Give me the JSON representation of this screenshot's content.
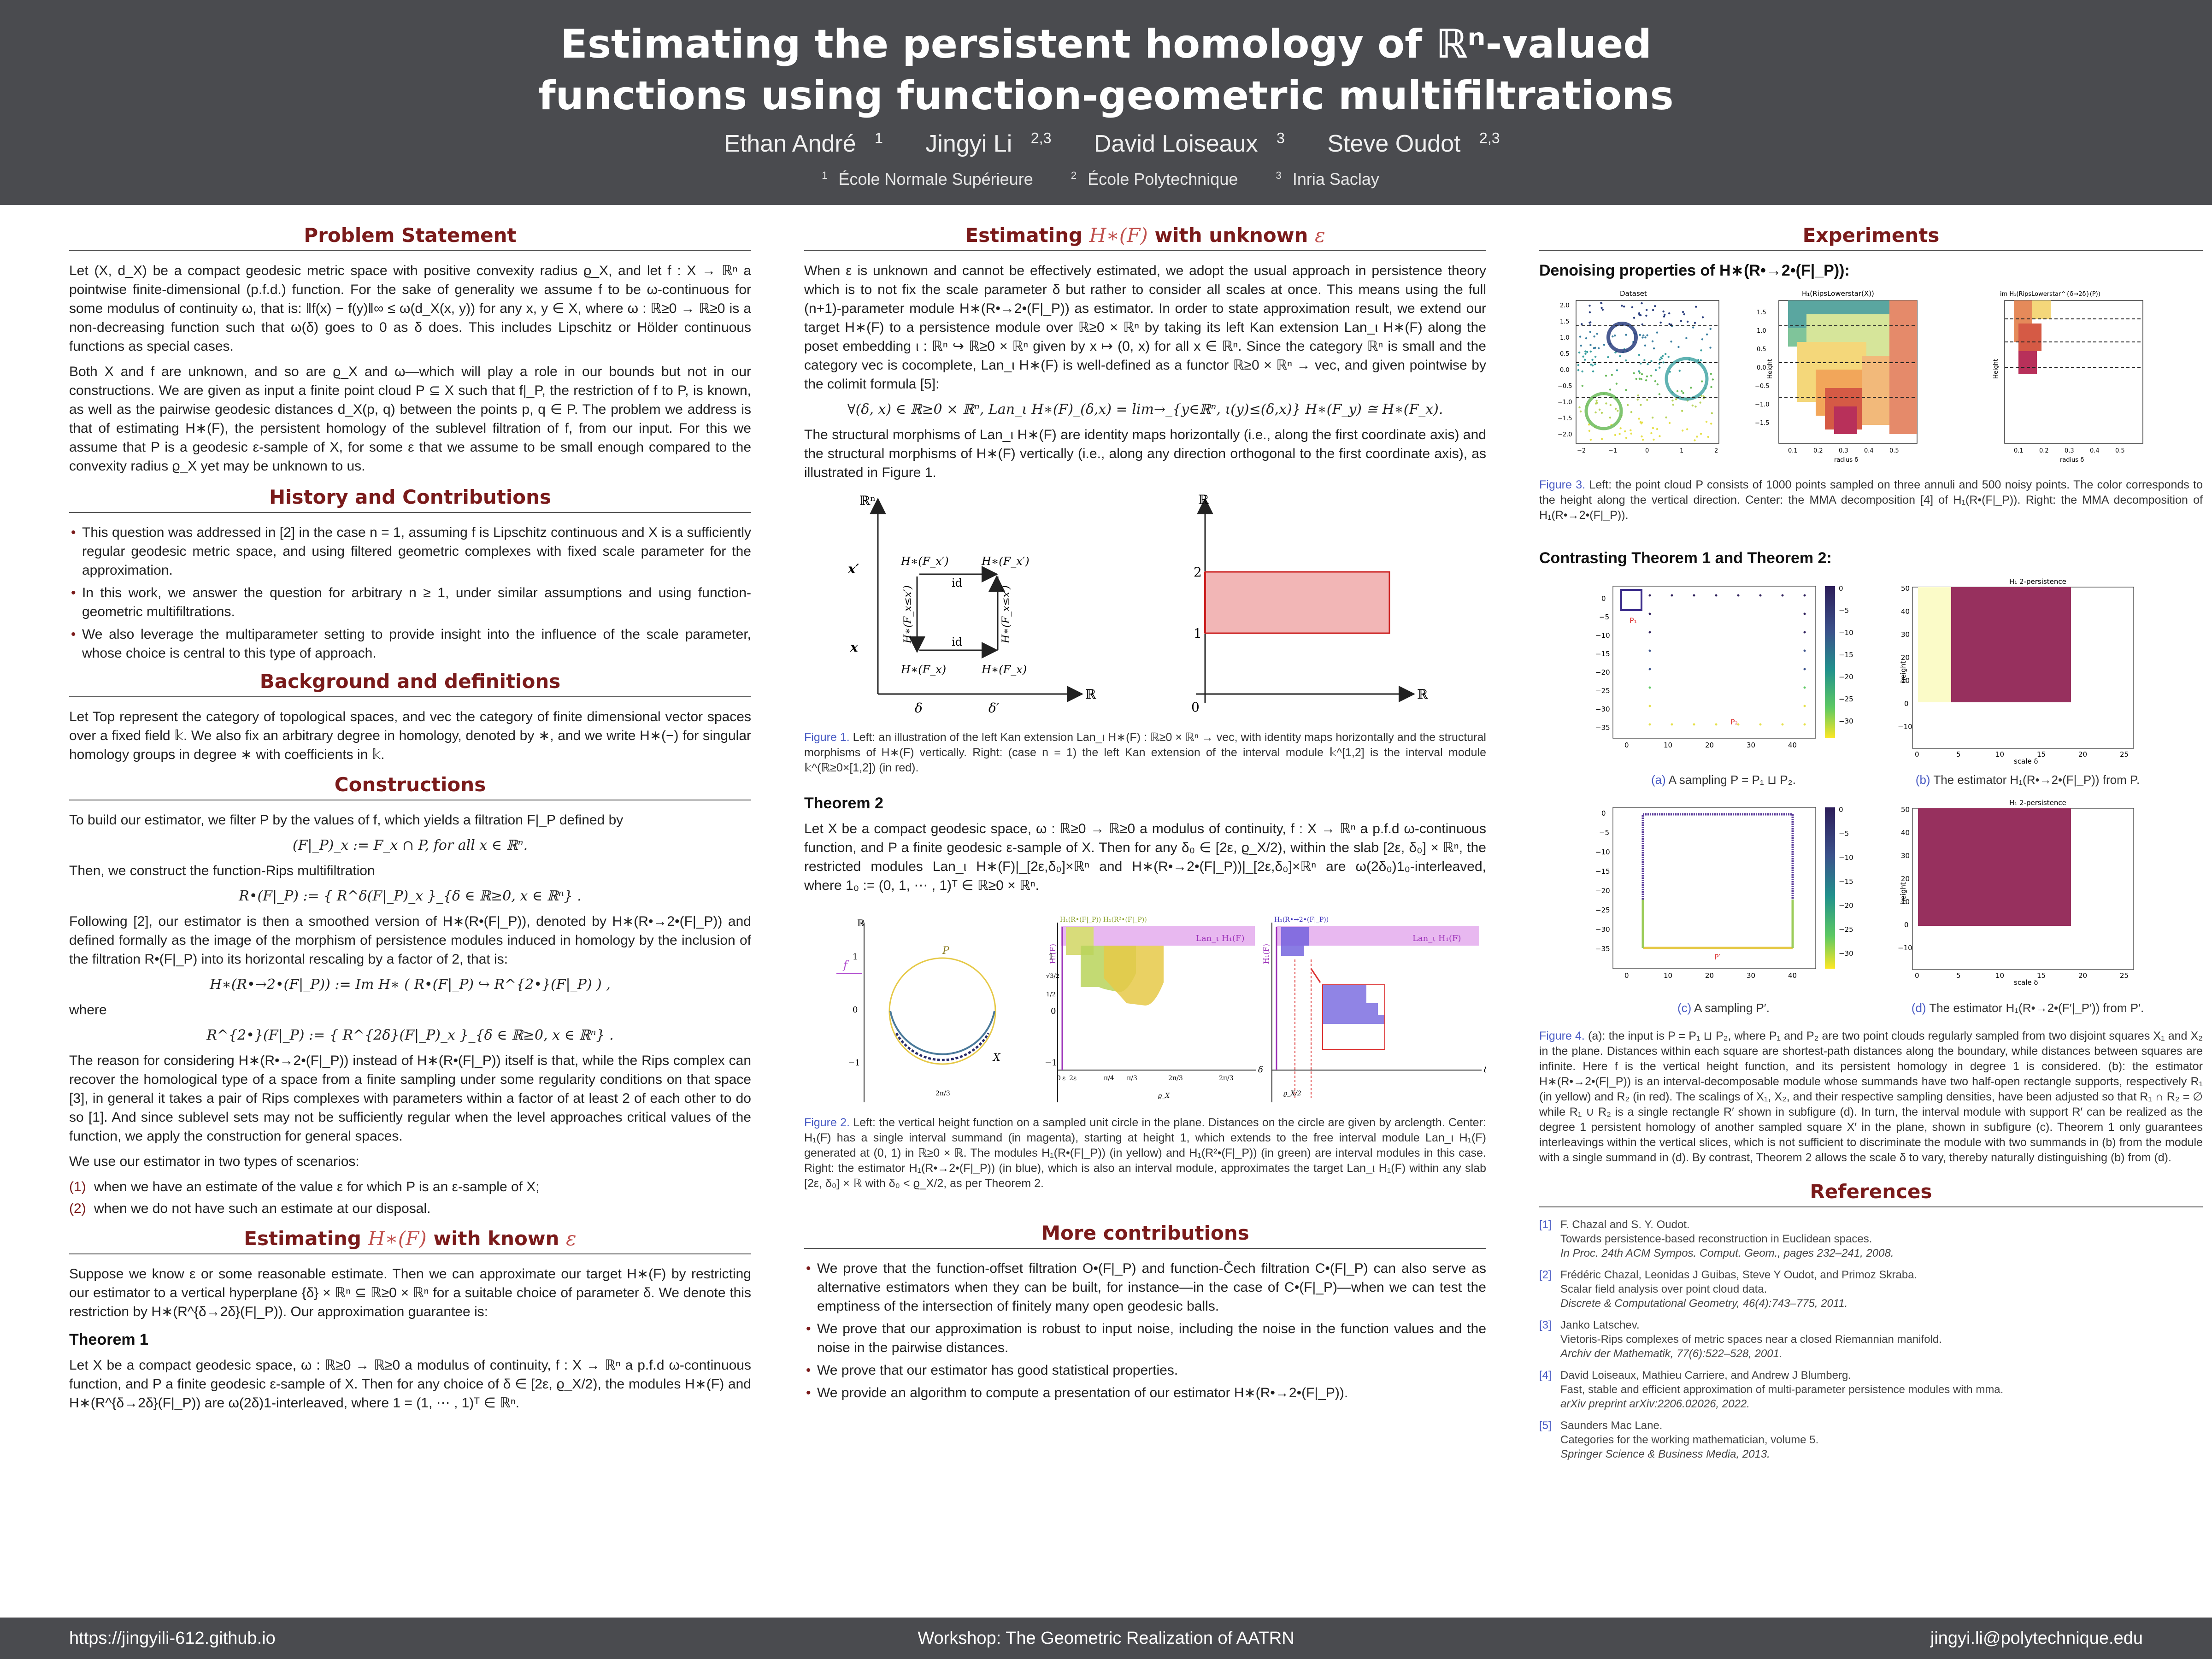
{
  "header": {
    "title_line1": "Estimating the persistent homology of ℝⁿ-valued",
    "title_line2": "functions using function-geometric multifiltrations",
    "authors": [
      {
        "name": "Ethan André",
        "sup": "1"
      },
      {
        "name": "Jingyi Li",
        "sup": "2,3"
      },
      {
        "name": "David Loiseaux",
        "sup": "3"
      },
      {
        "name": "Steve Oudot",
        "sup": "2,3"
      }
    ],
    "affiliations": [
      {
        "sup": "1",
        "name": "École Normale Supérieure"
      },
      {
        "sup": "2",
        "name": "École Polytechnique"
      },
      {
        "sup": "3",
        "name": "Inria Saclay"
      }
    ]
  },
  "col1": {
    "problem_title": "Problem Statement",
    "problem_p1": "Let (X, d_X) be a compact geodesic metric space with positive convexity radius ϱ_X, and let f : X → ℝⁿ a pointwise finite-dimensional (p.f.d.) function. For the sake of generality we assume f to be ω-continuous for some modulus of continuity ω, that is: ‖f(x) − f(y)‖∞ ≤ ω(d_X(x, y)) for any x, y ∈ X, where ω : ℝ≥0 → ℝ≥0 is a non-decreasing function such that ω(δ) goes to 0 as δ does. This includes Lipschitz or Hölder continuous functions as special cases.",
    "problem_p2": "Both X and f are unknown, and so are ϱ_X and ω—which will play a role in our bounds but not in our constructions. We are given as input a finite point cloud P ⊆ X such that f|_P, the restriction of f to P, is known, as well as the pairwise geodesic distances d_X(p, q) between the points p, q ∈ P. The problem we address is that of estimating H∗(F), the persistent homology of the sublevel filtration of f, from our input. For this we assume that P is a geodesic ε-sample of X, for some ε that we assume to be small enough compared to the convexity radius ϱ_X yet may be unknown to us.",
    "history_title": "History and Contributions",
    "history_items": [
      "This question was addressed in [2] in the case n = 1, assuming f is Lipschitz continuous and X is a sufficiently regular geodesic metric space, and using filtered geometric complexes with fixed scale parameter for the approximation.",
      "In this work, we answer the question for arbitrary n ≥ 1, under similar assumptions and using function-geometric multifiltrations.",
      "We also leverage the multiparameter setting to provide insight into the influence of the scale parameter, whose choice is central to this type of approach."
    ],
    "background_title": "Background and definitions",
    "background_p": "Let Top represent the category of topological spaces, and vec the category of finite dimensional vector spaces over a fixed field 𝕜. We also fix an arbitrary degree in homology, denoted by ∗, and we write H∗(−) for singular homology groups in degree ∗ with coefficients in 𝕜.",
    "constructions_title": "Constructions",
    "constructions_p1": "To build our estimator, we filter P by the values of f, which yields a filtration F|_P defined by",
    "constructions_eq1": "(F|_P)_x := F_x ∩ P, for all x ∈ ℝⁿ.",
    "constructions_p2": "Then, we construct the function-Rips multifiltration",
    "constructions_eq2": "R•(F|_P) := { R^δ(F|_P)_x }_{δ ∈ ℝ≥0, x ∈ ℝⁿ} .",
    "constructions_p3": "Following [2], our estimator is then a smoothed version of H∗(R•(F|_P)), denoted by H∗(R•→2•(F|_P)) and defined formally as the image of the morphism of persistence modules induced in homology by the inclusion of the filtration R•(F|_P) into its horizontal rescaling by a factor of 2, that is:",
    "constructions_eq3": "H∗(R•→2•(F|_P)) := Im H∗ ( R•(F|_P) ↪ R^{2•}(F|_P) ) ,",
    "constructions_where": "where",
    "constructions_eq4": "R^{2•}(F|_P) := { R^{2δ}(F|_P)_x }_{δ ∈ ℝ≥0, x ∈ ℝⁿ} .",
    "constructions_p4": "The reason for considering H∗(R•→2•(F|_P)) instead of H∗(R•(F|_P)) itself is that, while the Rips complex can recover the homological type of a space from a finite sampling under some regularity conditions on that space [3], in general it takes a pair of Rips complexes with parameters within a factor of at least 2 of each other to do so [1]. And since sublevel sets may not be sufficiently regular when the level approaches critical values of the function, we apply the construction for general spaces.",
    "constructions_p5": "We use our estimator in two types of scenarios:",
    "scenarios": [
      {
        "num": "(1)",
        "text": "when we have an estimate of the value ε for which P is an ε-sample of X;"
      },
      {
        "num": "(2)",
        "text": "when we do not have such an estimate at our disposal."
      }
    ],
    "known_title_a": "Estimating ",
    "known_title_m": "H∗(F)",
    "known_title_b": " with known ",
    "known_title_e": "ε",
    "known_p": "Suppose we know ε or some reasonable estimate. Then we can approximate our target H∗(F) by restricting our estimator to a vertical hyperplane {δ} × ℝⁿ ⊆ ℝ≥0 × ℝⁿ for a suitable choice of parameter δ. We denote this restriction by H∗(R^{δ→2δ}(F|_P)). Our approximation guarantee is:",
    "thm1_title": "Theorem 1",
    "thm1_text": "Let X be a compact geodesic space, ω : ℝ≥0 → ℝ≥0 a modulus of continuity, f : X → ℝⁿ a p.f.d ω-continuous function, and P a finite geodesic ε-sample of X. Then for any choice of δ ∈ [2ε, ϱ_X/2), the modules H∗(F) and H∗(R^{δ→2δ}(F|_P)) are ω(2δ)1-interleaved, where 1 = (1, ⋯ , 1)ᵀ ∈ ℝⁿ."
  },
  "col2": {
    "unknown_title_a": "Estimating ",
    "unknown_title_m": "H∗(F)",
    "unknown_title_b": " with unknown ",
    "unknown_title_e": "ε",
    "unknown_p1": "When ε is unknown and cannot be effectively estimated, we adopt the usual approach in persistence theory which is to not fix the scale parameter δ but rather to consider all scales at once. This means using the full (n+1)-parameter module H∗(R•→2•(F|_P)) as estimator. In order to state approximation result, we extend our target H∗(F) to a persistence module over ℝ≥0 × ℝⁿ by taking its left Kan extension Lan_ι H∗(F) along the poset embedding ι : ℝⁿ ↪ ℝ≥0 × ℝⁿ given by x ↦ (0, x) for all x ∈ ℝⁿ. Since the category ℝⁿ is small and the category vec is cocomplete, Lan_ι H∗(F) is well-defined as a functor ℝ≥0 × ℝⁿ → vec, and given pointwise by the colimit formula [5]:",
    "unknown_eq": "∀(δ, x) ∈ ℝ≥0 × ℝⁿ,   Lan_ι H∗(F)_(δ,x) =  lim→_{y∈ℝⁿ, ι(y)≤(δ,x)}  H∗(F_y) ≅ H∗(F_x).",
    "unknown_p2": "The structural morphisms of Lan_ι H∗(F) are identity maps horizontally (i.e., along the first coordinate axis) and the structural morphisms of H∗(F) vertically (i.e., along any direction orthogonal to the first coordinate axis), as illustrated in Figure 1.",
    "fig1_left": {
      "y_axis": "ℝⁿ",
      "x_axis": "ℝ",
      "y_ticks": [
        "x′",
        "x"
      ],
      "x_ticks": [
        "δ",
        "δ′"
      ],
      "top_left": "H∗(F_x′)",
      "top_right": "H∗(F_x′)",
      "bottom_left": "H∗(F_x)",
      "bottom_right": "H∗(F_x)",
      "left_vertical": "H∗(F_x≤x′)",
      "right_vertical": "H∗(F_x≤x′)",
      "id_label": "id"
    },
    "fig1_right": {
      "y_axis": "ℝ",
      "x_axis": "ℝ",
      "y_ticks": [
        "2",
        "1"
      ],
      "origin": "0",
      "fill_color": "#f2b6b6",
      "stroke_color": "#cc2222"
    },
    "fig1_caption_label": "Figure 1.",
    "fig1_caption": " Left: an illustration of the left Kan extension Lan_ι H∗(F) : ℝ≥0 × ℝⁿ → vec, with identity maps horizontally and the structural morphisms of H∗(F) vertically. Right: (case n = 1) the left Kan extension of the interval module 𝕜^[1,2] is the interval module 𝕜^(ℝ≥0×[1,2]) (in red).",
    "thm2_title": "Theorem 2",
    "thm2_text": "Let X be a compact geodesic space, ω : ℝ≥0 → ℝ≥0 a modulus of continuity, f : X → ℝⁿ a p.f.d ω-continuous function, and P a finite geodesic ε-sample of X. Then for any δ₀ ∈ [2ε, ϱ_X/2), within the slab [2ε, δ₀] × ℝⁿ, the restricted modules Lan_ι H∗(F)|_[2ε,δ₀]×ℝⁿ and H∗(R•→2•(F|_P))|_[2ε,δ₀]×ℝⁿ are ω(2δ₀)1₀-interleaved, where 1₀ := (0, 1, ⋯ , 1)ᵀ ∈ ℝ≥0 × ℝⁿ.",
    "fig2": {
      "circle_labels": {
        "y_axis": "ℝ",
        "f_label": "f",
        "P_label": "P",
        "X_label": "X",
        "ticks": [
          "1",
          "0",
          "−1"
        ],
        "bottom": "2π/3"
      },
      "middle_legend": "H₁(R•(F|_P))  H₁(R²•(F|_P))",
      "middle_lan": "Lan_ι H₁(F)",
      "middle_ylabel": "H₁(F)",
      "middle_xticks": [
        "0",
        "ε",
        "2ε",
        "π/4",
        "π/3",
        "2π/3",
        "2π/3"
      ],
      "middle_yticks": [
        "1",
        "√3/2",
        "1/2",
        "0",
        "−1"
      ],
      "right_legend": "H₁(R•→2•(F|_P))",
      "right_lan": "Lan_ι H₁(F)",
      "right_ylabel": "H₁(F)",
      "axis_delta": "δ",
      "rho_label": "ϱ_X",
      "rho_half": "ϱ_X/2",
      "colors": {
        "yellow": "#e6c948",
        "green": "#b8d35a",
        "magenta": "#d66be6",
        "blue": "#6b5bdc",
        "red": "#dd3333"
      }
    },
    "fig2_caption_label": "Figure 2.",
    "fig2_caption": " Left: the vertical height function on a sampled unit circle in the plane. Distances on the circle are given by arclength. Center: H₁(F) has a single interval summand (in magenta), starting at height 1, which extends to the free interval module Lan_ι H₁(F) generated at (0, 1) in ℝ≥0 × ℝ. The modules H₁(R•(F|_P)) (in yellow) and H₁(R²•(F|_P)) (in green) are interval modules in this case. Right: the estimator H₁(R•→2•(F|_P)) (in blue), which is also an interval module, approximates the target Lan_ι H₁(F) within any slab [2ε, δ₀] × ℝ with δ₀ < ϱ_X/2, as per Theorem 2.",
    "more_title": "More contributions",
    "more_items": [
      "We prove that the function-offset filtration O•(F|_P) and function-Čech filtration C•(F|_P) can also serve as alternative estimators when they can be built, for instance—in the case of C•(F|_P)—when we can test the emptiness of the intersection of finitely many open geodesic balls.",
      "We prove that our approximation is robust to input noise, including the noise in the function values and the noise in the pairwise distances.",
      "We prove that our estimator has good statistical properties.",
      "We provide an algorithm to compute a presentation of our estimator H∗(R•→2•(F|_P))."
    ]
  },
  "col3": {
    "experiments_title": "Experiments",
    "denoise_title": "Denoising properties of H∗(R•→2•(F|_P)):",
    "fig3": {
      "panel1_title": "Dataset",
      "panel2_title": "H₁(RipsLowerstar(X))",
      "panel3_title": "im H₁(RipsLowerstar^{δ→2δ}(P))",
      "ylabel": "Height",
      "xlabel": "radius δ",
      "panel1_xticks": [
        "−2",
        "−1",
        "0",
        "1",
        "2"
      ],
      "panel1_yticks": [
        "2.0",
        "1.5",
        "1.0",
        "0.5",
        "0.0",
        "−0.5",
        "−1.0",
        "−1.5",
        "−2.0"
      ],
      "panel2_xticks": [
        "0.1",
        "0.2",
        "0.3",
        "0.4",
        "0.5"
      ],
      "panel2_yticks": [
        "1.5",
        "1.0",
        "0.5",
        "0.0",
        "−0.5",
        "−1.0",
        "−1.5"
      ],
      "panel3_xticks": [
        "0.1",
        "0.2",
        "0.3",
        "0.4",
        "0.5"
      ]
    },
    "fig3_caption_label": "Figure 3.",
    "fig3_caption": " Left: the point cloud P consists of 1000 points sampled on three annuli and 500 noisy points. The color corresponds to the height along the vertical direction. Center: the MMA decomposition [4] of H₁(R•(F|_P)). Right: the MMA decomposition of H₁(R•→2•(F|_P)).",
    "contrast_title": "Contrasting Theorem 1 and Theorem 2:",
    "fig4": {
      "a_xticks": [
        "0",
        "10",
        "20",
        "30",
        "40"
      ],
      "a_yticks": [
        "0",
        "−5",
        "−10",
        "−15",
        "−20",
        "−25",
        "−30",
        "−35"
      ],
      "a_cbar": [
        "0",
        "−5",
        "−10",
        "−15",
        "−20",
        "−25",
        "−30"
      ],
      "a_p1": "P₁",
      "a_p2": "P₂",
      "b_title": "H₁ 2-persistence",
      "b_xticks": [
        "0",
        "5",
        "10",
        "15",
        "20",
        "25"
      ],
      "b_yticks": [
        "50",
        "40",
        "30",
        "20",
        "10",
        "0",
        "−10"
      ],
      "b_xlabel": "scale δ",
      "b_ylabel": "height",
      "c_pp": "P′",
      "d_title": "H₁ 2-persistence",
      "d_yticks": [
        "50",
        "40",
        "30",
        "20",
        "10",
        "0",
        "−10"
      ],
      "colors": {
        "wine": "#97305e",
        "pale": "#fbfbc8",
        "navy": "#2d2a7a"
      }
    },
    "fig4_sub_a": {
      "label": "(a)",
      "text": " A sampling P = P₁ ⊔ P₂."
    },
    "fig4_sub_b": {
      "label": "(b)",
      "text": " The estimator H₁(R•→2•(F|_P)) from P."
    },
    "fig4_sub_c": {
      "label": "(c)",
      "text": " A sampling P′."
    },
    "fig4_sub_d": {
      "label": "(d)",
      "text": " The estimator H₁(R•→2•(F′|_P′)) from P′."
    },
    "fig4_caption_label": "Figure 4.",
    "fig4_caption": " (a): the input is P = P₁ ⊔ P₂, where P₁ and P₂ are two point clouds regularly sampled from two disjoint squares X₁ and X₂ in the plane. Distances within each square are shortest-path distances along the boundary, while distances between squares are infinite. Here f is the vertical height function, and its persistent homology in degree 1 is considered. (b): the estimator H∗(R•→2•(F|_P)) is an interval-decomposable module whose summands have two half-open rectangle supports, respectively R₁ (in yellow) and R₂ (in red). The scalings of X₁, X₂, and their respective sampling densities, have been adjusted so that R₁ ∩ R₂ = ∅ while R₁ ∪ R₂ is a single rectangle R′ shown in subfigure (d). In turn, the interval module with support R′ can be realized as the degree 1 persistent homology of another sampled square X′ in the plane, shown in subfigure (c). Theorem 1 only guarantees interleavings within the vertical slices, which is not sufficient to discriminate the module with two summands in (b) from the module with a single summand in (d). By contrast, Theorem 2 allows the scale δ to vary, thereby naturally distinguishing (b) from (d).",
    "references_title": "References",
    "references": [
      {
        "num": "[1]",
        "authors": "F. Chazal and S. Y. Oudot.",
        "title": "Towards persistence-based reconstruction in Euclidean spaces.",
        "venue": "In Proc. 24th ACM Sympos. Comput. Geom., pages 232–241, 2008."
      },
      {
        "num": "[2]",
        "authors": "Frédéric Chazal, Leonidas J Guibas, Steve Y Oudot, and Primoz Skraba.",
        "title": "Scalar field analysis over point cloud data.",
        "venue": "Discrete & Computational Geometry, 46(4):743–775, 2011."
      },
      {
        "num": "[3]",
        "authors": "Janko Latschev.",
        "title": "Vietoris-Rips complexes of metric spaces near a closed Riemannian manifold.",
        "venue": "Archiv der Mathematik, 77(6):522–528, 2001."
      },
      {
        "num": "[4]",
        "authors": "David Loiseaux, Mathieu Carriere, and Andrew J Blumberg.",
        "title": "Fast, stable and efficient approximation of multi-parameter persistence modules with mma.",
        "venue": "arXiv preprint arXiv:2206.02026, 2022."
      },
      {
        "num": "[5]",
        "authors": "Saunders Mac Lane.",
        "title": "Categories for the working mathematician, volume 5.",
        "venue": "Springer Science & Business Media, 2013."
      }
    ]
  },
  "footer": {
    "left": "https://jingyili-612.github.io",
    "center": "Workshop: The Geometric Realization of AATRN",
    "right": "jingyi.li@polytechnique.edu"
  }
}
